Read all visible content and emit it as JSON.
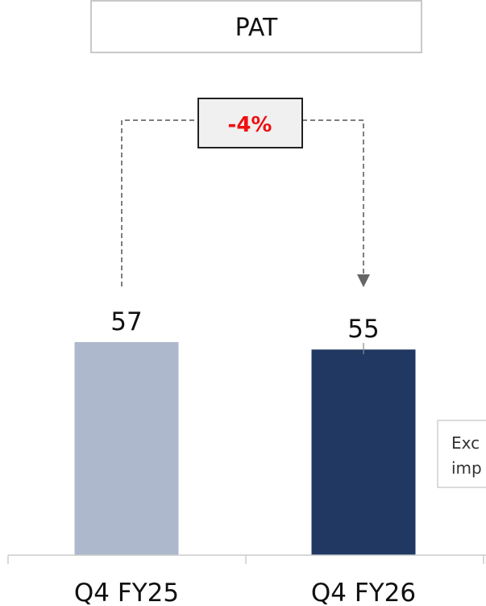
{
  "chart_data": {
    "type": "bar",
    "title": "PAT",
    "categories": [
      "Q4 FY25",
      "Q4 FY26"
    ],
    "values": [
      57,
      55
    ],
    "data_labels": [
      "57",
      "55"
    ],
    "change_label": "-4%",
    "side_note_lines": [
      "Exc",
      "imp"
    ],
    "colors": {
      "bars": [
        "#adb8cc",
        "#213863"
      ],
      "change_text": "#ee1111",
      "change_box_fill": "#f0f0f0",
      "connector": "#555555",
      "axis": "#cccccc"
    },
    "ylim": [
      0,
      60
    ],
    "grid": false
  }
}
